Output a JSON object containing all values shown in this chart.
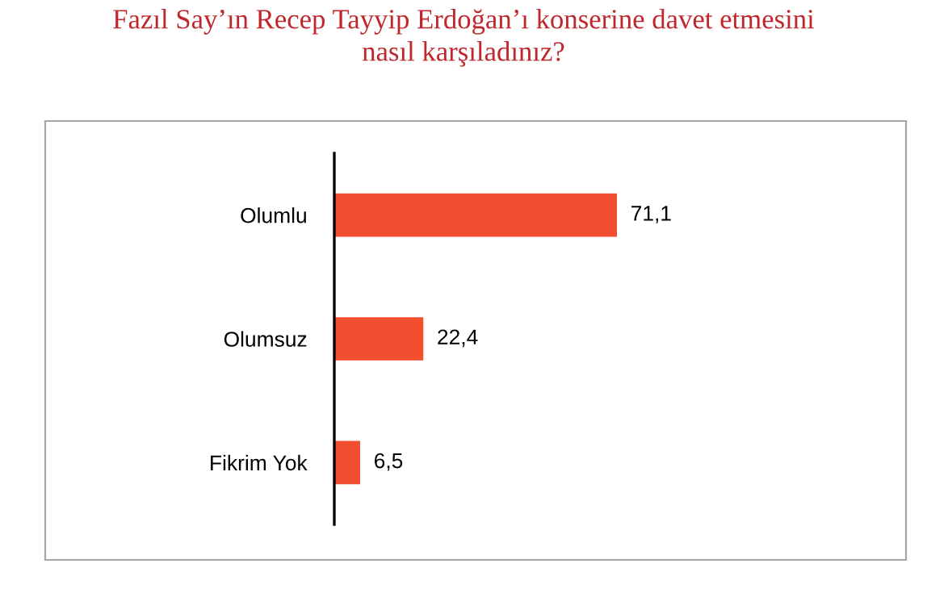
{
  "chart_data": {
    "type": "bar",
    "orientation": "horizontal",
    "title": "Fazıl Say’ın Recep Tayyip Erdoğan’ı konserine davet etmesini\nnasıl karşıladınız?",
    "categories": [
      "Olumlu",
      "Olumsuz",
      "Fikrim Yok"
    ],
    "values": [
      71.1,
      22.4,
      6.5
    ],
    "value_labels": [
      "71,1",
      "22,4",
      "6,5"
    ],
    "color": "#f04e2f",
    "grid": false,
    "legend": false
  }
}
